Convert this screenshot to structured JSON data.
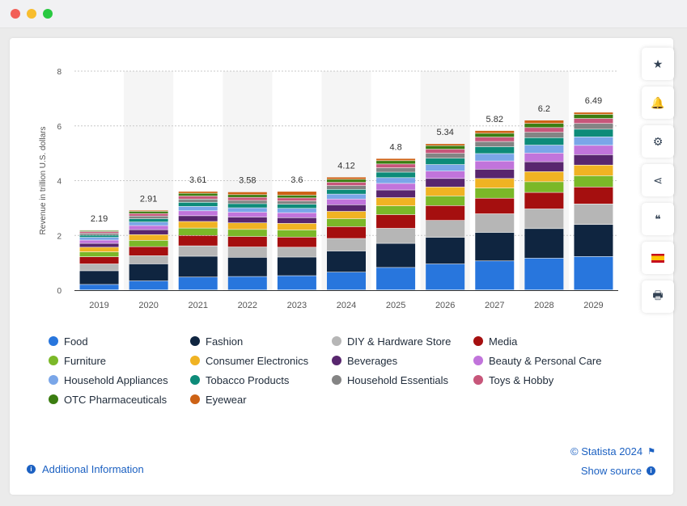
{
  "window": {
    "controls": [
      "close",
      "minimize",
      "maximize"
    ]
  },
  "toolbar": {
    "buttons": [
      {
        "name": "favorite",
        "icon": "star-icon",
        "glyph": "★"
      },
      {
        "name": "notification",
        "icon": "bell-icon",
        "glyph": "🔔"
      },
      {
        "name": "settings",
        "icon": "gear-icon",
        "glyph": "⚙"
      },
      {
        "name": "share",
        "icon": "share-icon",
        "glyph": "⋖"
      },
      {
        "name": "cite",
        "icon": "quote-icon",
        "glyph": "❝"
      },
      {
        "name": "language",
        "icon": "spain-flag-icon",
        "glyph": ""
      },
      {
        "name": "print",
        "icon": "printer-icon",
        "glyph": "🖶"
      }
    ]
  },
  "footer": {
    "copyright": "© Statista 2024",
    "show_source": "Show source",
    "additional_info": "Additional Information"
  },
  "chart_data": {
    "type": "bar",
    "stacked": true,
    "ylabel": "Revenue in trillion U.S. dollars",
    "xlabel": "",
    "ylim": [
      0,
      8
    ],
    "yticks": [
      "0",
      "2",
      "4",
      "6",
      "8"
    ],
    "grid": true,
    "legend_position": "bottom",
    "categories": [
      "2019",
      "2020",
      "2021",
      "2022",
      "2023",
      "2024",
      "2025",
      "2026",
      "2027",
      "2028",
      "2029"
    ],
    "totals": [
      "2.19",
      "2.91",
      "3.61",
      "3.58",
      "3.6",
      "4.12",
      "4.8",
      "5.34",
      "5.82",
      "6.2",
      "6.49"
    ],
    "series": [
      {
        "name": "Food",
        "color": "#2876dd",
        "values": [
          0.2,
          0.33,
          0.47,
          0.49,
          0.52,
          0.65,
          0.82,
          0.95,
          1.06,
          1.16,
          1.22
        ]
      },
      {
        "name": "Fashion",
        "color": "#0f2540",
        "values": [
          0.5,
          0.62,
          0.76,
          0.7,
          0.68,
          0.77,
          0.88,
          0.97,
          1.04,
          1.08,
          1.17
        ]
      },
      {
        "name": "DIY & Hardware Store",
        "color": "#b6b6b6",
        "values": [
          0.25,
          0.3,
          0.38,
          0.38,
          0.36,
          0.46,
          0.55,
          0.62,
          0.68,
          0.72,
          0.75
        ]
      },
      {
        "name": "Media",
        "color": "#a50f0f",
        "values": [
          0.26,
          0.33,
          0.38,
          0.38,
          0.37,
          0.43,
          0.5,
          0.54,
          0.57,
          0.6,
          0.62
        ]
      },
      {
        "name": "Furniture",
        "color": "#7bb828",
        "values": [
          0.18,
          0.23,
          0.27,
          0.26,
          0.26,
          0.29,
          0.32,
          0.35,
          0.37,
          0.39,
          0.41
        ]
      },
      {
        "name": "Consumer Electronics",
        "color": "#f0b323",
        "values": [
          0.17,
          0.21,
          0.24,
          0.24,
          0.24,
          0.27,
          0.3,
          0.33,
          0.35,
          0.37,
          0.39
        ]
      },
      {
        "name": "Beverages",
        "color": "#58266e",
        "values": [
          0.14,
          0.18,
          0.21,
          0.21,
          0.21,
          0.24,
          0.28,
          0.31,
          0.34,
          0.36,
          0.38
        ]
      },
      {
        "name": "Beauty & Personal Care",
        "color": "#c174db",
        "values": [
          0.12,
          0.15,
          0.18,
          0.18,
          0.18,
          0.21,
          0.24,
          0.27,
          0.3,
          0.32,
          0.34
        ]
      },
      {
        "name": "Household Appliances",
        "color": "#7aa6e8",
        "values": [
          0.1,
          0.13,
          0.16,
          0.16,
          0.16,
          0.18,
          0.21,
          0.24,
          0.27,
          0.29,
          0.31
        ]
      },
      {
        "name": "Tobacco Products",
        "color": "#0d8b79",
        "values": [
          0.08,
          0.12,
          0.15,
          0.15,
          0.15,
          0.17,
          0.2,
          0.23,
          0.25,
          0.27,
          0.28
        ]
      },
      {
        "name": "Household Essentials",
        "color": "#848484",
        "values": [
          0.07,
          0.1,
          0.12,
          0.12,
          0.12,
          0.14,
          0.16,
          0.18,
          0.19,
          0.2,
          0.21
        ]
      },
      {
        "name": "Toys & Hobby",
        "color": "#c7567a",
        "values": [
          0.06,
          0.09,
          0.11,
          0.11,
          0.11,
          0.12,
          0.14,
          0.15,
          0.16,
          0.17,
          0.18
        ]
      },
      {
        "name": "OTC Pharmaceuticals",
        "color": "#3b7d11",
        "values": [
          0.04,
          0.08,
          0.1,
          0.1,
          0.1,
          0.11,
          0.12,
          0.13,
          0.14,
          0.15,
          0.15
        ]
      },
      {
        "name": "Eyewear",
        "color": "#cd6215",
        "values": [
          0.02,
          0.04,
          0.07,
          0.1,
          0.14,
          0.08,
          0.08,
          0.07,
          0.1,
          0.12,
          0.08
        ]
      }
    ]
  }
}
